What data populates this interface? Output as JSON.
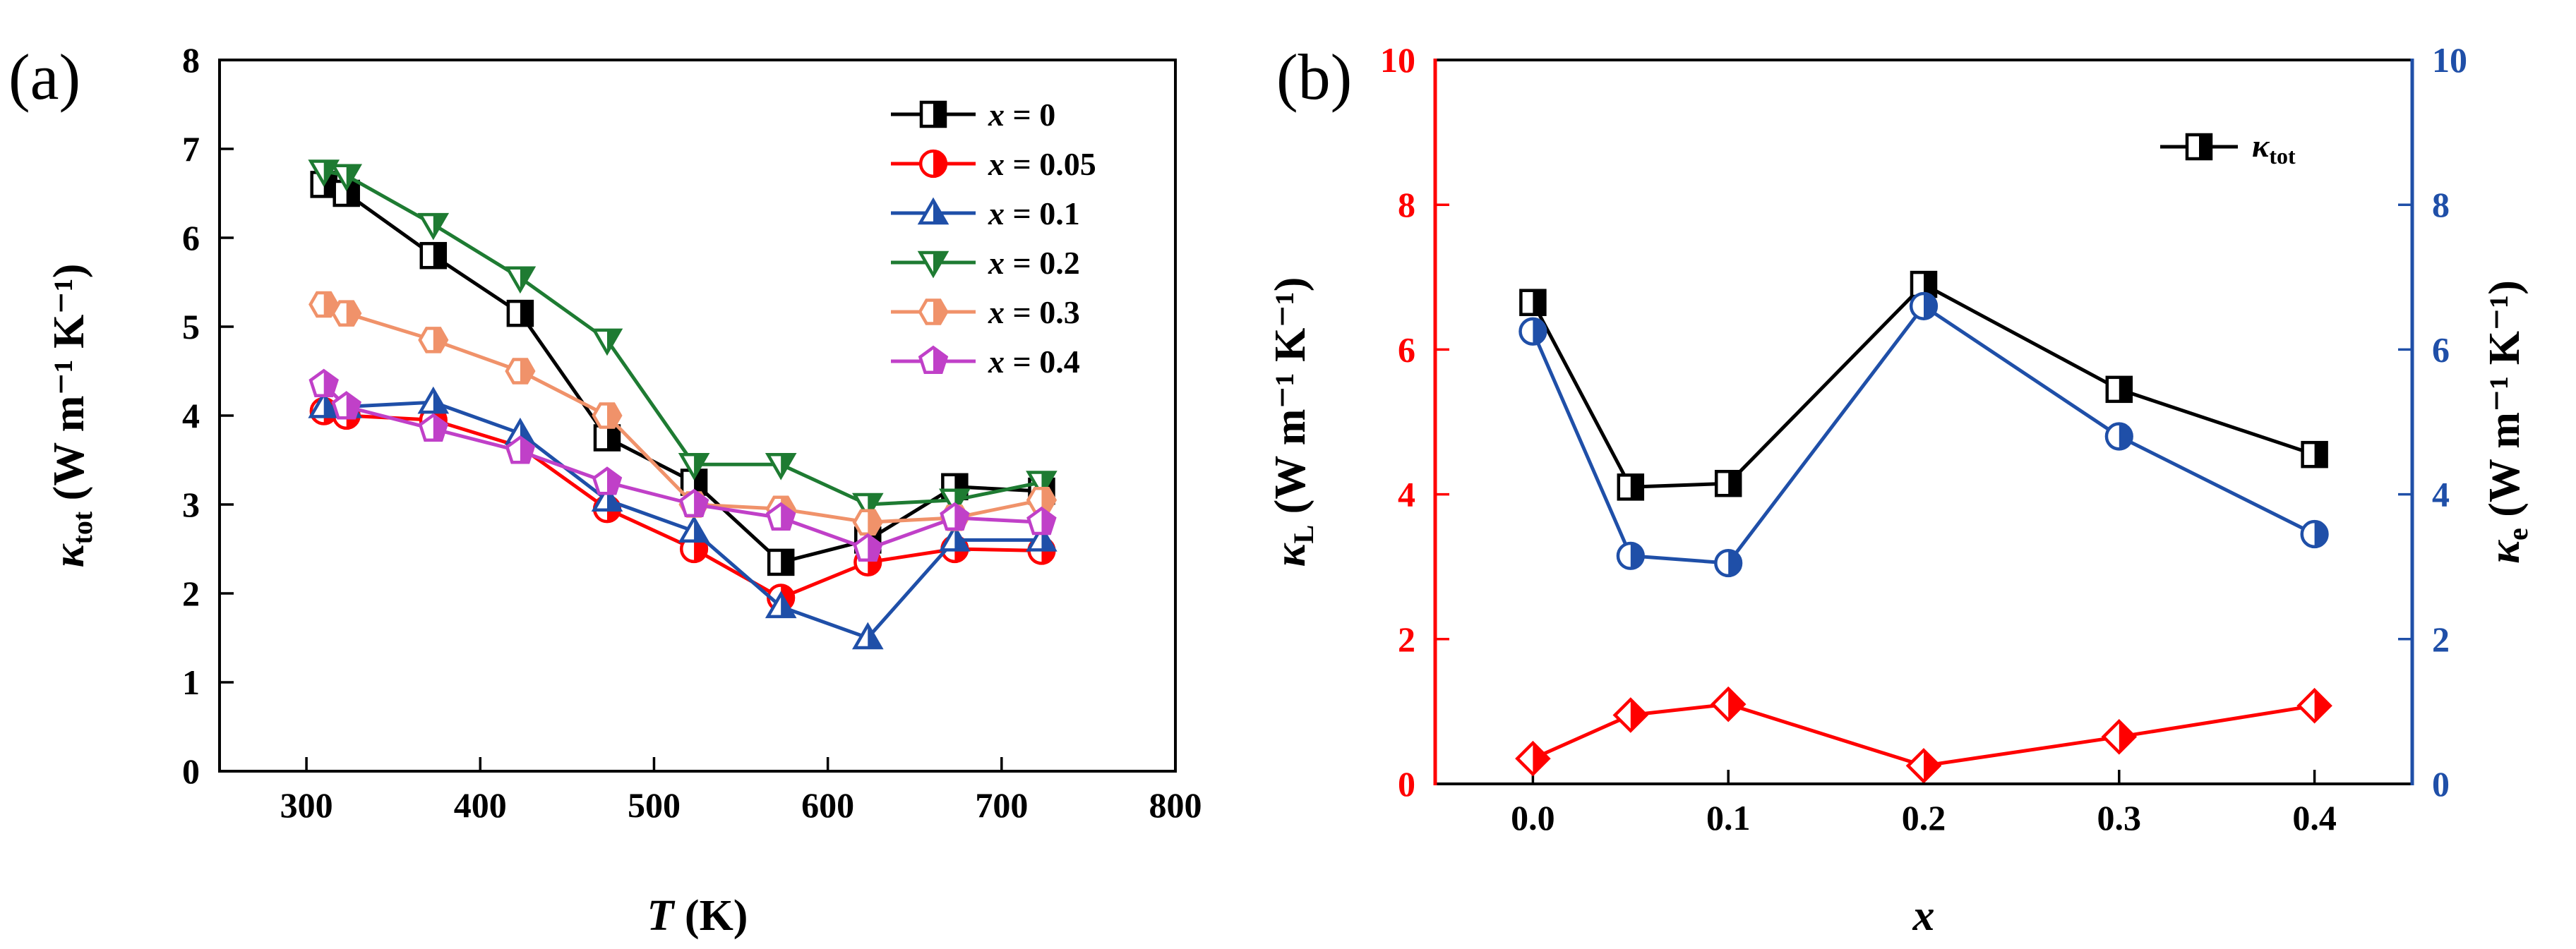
{
  "chart_data": [
    {
      "panel": "(a)",
      "type": "line",
      "xlabel_symbol": "T",
      "xlabel_unit": "(K)",
      "ylabel_symbol": "κ",
      "ylabel_subscript": "tot",
      "ylabel_unit": "(W m⁻¹ K⁻¹)",
      "xlim": [
        250,
        800
      ],
      "ylim": [
        0,
        8
      ],
      "xticks": [
        300,
        400,
        500,
        600,
        700,
        800
      ],
      "yticks": [
        0,
        1,
        2,
        3,
        4,
        5,
        6,
        7,
        8
      ],
      "legend_position": "top-right",
      "series": [
        {
          "name": "x = 0",
          "var": "x",
          "value": " = 0",
          "color": "#000000",
          "marker": "square",
          "x": [
            310,
            323,
            373,
            423,
            473,
            523,
            573,
            623,
            673,
            723
          ],
          "y": [
            6.6,
            6.5,
            5.8,
            5.15,
            3.75,
            3.25,
            2.35,
            2.6,
            3.2,
            3.15
          ]
        },
        {
          "name": "x = 0.05",
          "var": "x",
          "value": " = 0.05",
          "color": "#ff0000",
          "marker": "circle",
          "x": [
            310,
            323,
            373,
            423,
            473,
            523,
            573,
            623,
            673,
            723
          ],
          "y": [
            4.05,
            4.0,
            3.95,
            3.65,
            2.95,
            2.5,
            1.95,
            2.35,
            2.5,
            2.48
          ]
        },
        {
          "name": "x = 0.1",
          "var": "x",
          "value": " = 0.1",
          "color": "#1f4fa8",
          "marker": "triangle-up",
          "x": [
            310,
            323,
            373,
            423,
            473,
            523,
            573,
            623,
            673,
            723
          ],
          "y": [
            4.1,
            4.1,
            4.15,
            3.8,
            3.05,
            2.7,
            1.85,
            1.5,
            2.6,
            2.6
          ]
        },
        {
          "name": "x = 0.2",
          "var": "x",
          "value": " = 0.2",
          "color": "#1e7b32",
          "marker": "triangle-down",
          "x": [
            310,
            323,
            373,
            423,
            473,
            523,
            573,
            623,
            673,
            723
          ],
          "y": [
            6.75,
            6.7,
            6.15,
            5.55,
            4.85,
            3.45,
            3.45,
            3.0,
            3.05,
            3.25
          ]
        },
        {
          "name": "x = 0.3",
          "var": "x",
          "value": " = 0.3",
          "color": "#f0926a",
          "marker": "hexagon",
          "x": [
            310,
            323,
            373,
            423,
            473,
            523,
            573,
            623,
            673,
            723
          ],
          "y": [
            5.25,
            5.15,
            4.85,
            4.5,
            4.0,
            3.0,
            2.95,
            2.8,
            2.85,
            3.05
          ]
        },
        {
          "name": "x = 0.4",
          "var": "x",
          "value": " = 0.4",
          "color": "#c040c8",
          "marker": "pentagon",
          "x": [
            310,
            323,
            373,
            423,
            473,
            523,
            573,
            623,
            673,
            723
          ],
          "y": [
            4.35,
            4.1,
            3.85,
            3.6,
            3.25,
            3.0,
            2.85,
            2.5,
            2.85,
            2.8
          ]
        }
      ]
    },
    {
      "panel": "(b)",
      "type": "line",
      "xlabel": "x",
      "ylabel_left_symbol": "κ",
      "ylabel_left_subscript": "L",
      "ylabel_right_symbol": "κ",
      "ylabel_right_subscript": "e",
      "ylabel_unit": "(W m⁻¹ K⁻¹)",
      "xlim": [
        -0.05,
        0.45
      ],
      "ylim_left": [
        0,
        10
      ],
      "ylim_right": [
        0,
        10
      ],
      "xticks": [
        "0.0",
        "0.1",
        "0.2",
        "0.3",
        "0.4"
      ],
      "yticks_left": [
        0,
        2,
        4,
        6,
        8,
        10
      ],
      "yticks_right": [
        0,
        2,
        4,
        6,
        8,
        10
      ],
      "left_axis_color": "#ff0000",
      "right_axis_color": "#1f4fa8",
      "legend_position": "top-right",
      "series": [
        {
          "name": "κtot",
          "symbol": "κ",
          "subscript": "tot",
          "color": "#000000",
          "marker": "square",
          "axis": "left",
          "in_legend": true,
          "x": [
            0.0,
            0.05,
            0.1,
            0.2,
            0.3,
            0.4
          ],
          "y": [
            6.65,
            4.1,
            4.15,
            6.9,
            5.45,
            4.55
          ]
        },
        {
          "name": "κe",
          "color": "#1f4fa8",
          "marker": "circle",
          "axis": "right",
          "in_legend": false,
          "x": [
            0.0,
            0.05,
            0.1,
            0.2,
            0.3,
            0.4
          ],
          "y": [
            6.25,
            3.15,
            3.05,
            6.6,
            4.8,
            3.45
          ]
        },
        {
          "name": "κL",
          "color": "#ff0000",
          "marker": "diamond",
          "axis": "left",
          "in_legend": false,
          "x": [
            0.0,
            0.05,
            0.1,
            0.2,
            0.3,
            0.4
          ],
          "y": [
            0.35,
            0.95,
            1.1,
            0.25,
            0.65,
            1.08
          ]
        }
      ]
    }
  ]
}
